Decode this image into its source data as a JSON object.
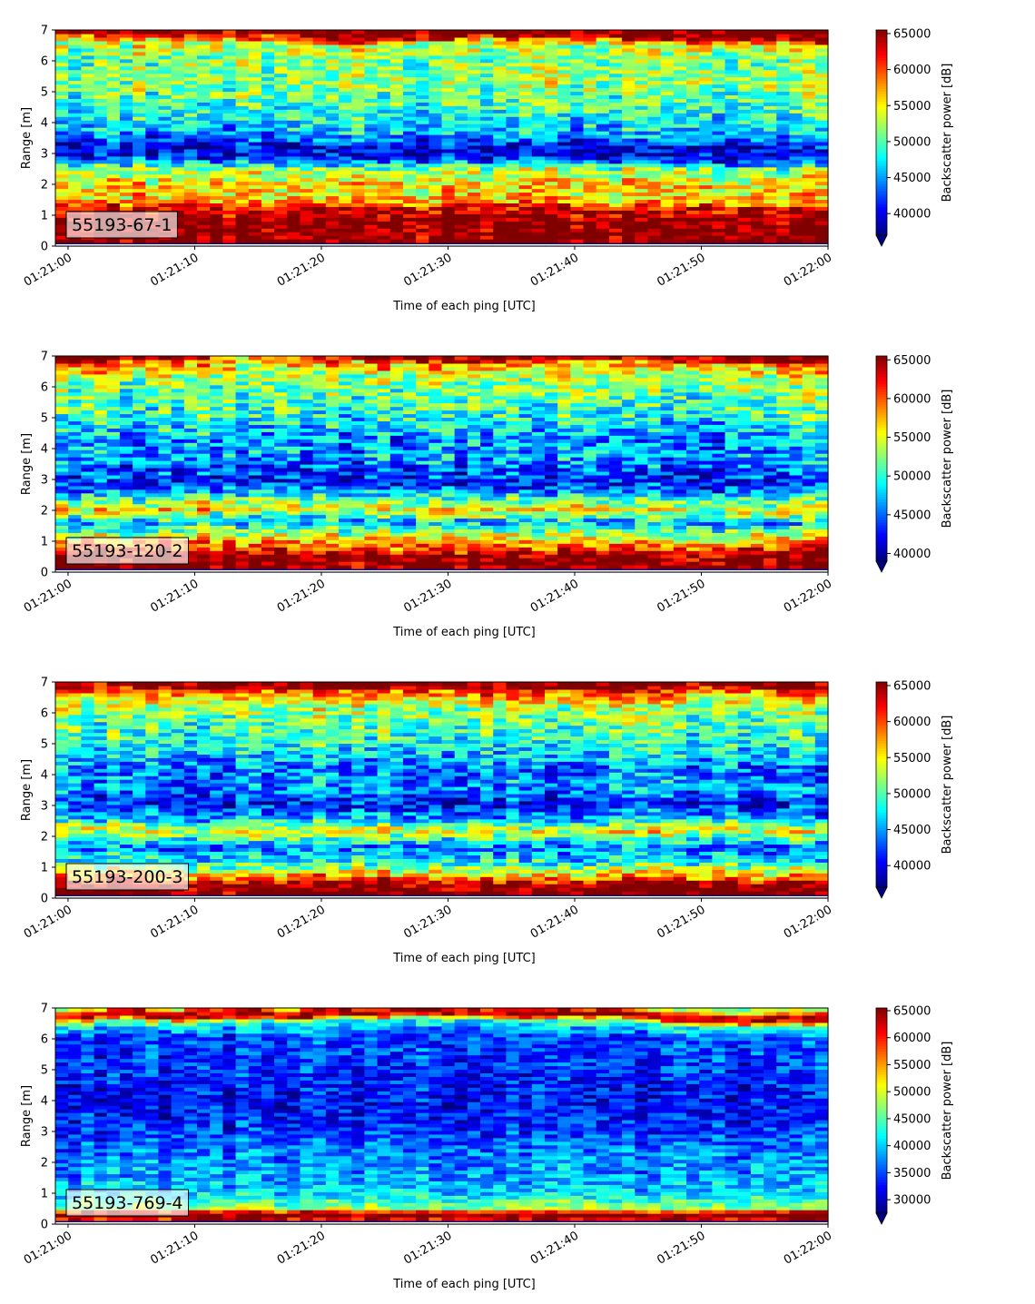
{
  "chart_data": [
    {
      "type": "heatmap",
      "label": "55193-67-1",
      "xlabel": "Time of each ping [UTC]",
      "ylabel": "Range [m]",
      "x_range": [
        "01:20:59",
        "01:22:00"
      ],
      "x_ticks": [
        "01:21:00",
        "01:21:10",
        "01:21:20",
        "01:21:30",
        "01:21:40",
        "01:21:50",
        "01:22:00"
      ],
      "ylim": [
        0,
        7
      ],
      "y_ticks": [
        "0",
        "1",
        "2",
        "3",
        "4",
        "5",
        "6",
        "7"
      ],
      "colorbar": {
        "label": "Backscatter power [dB]",
        "colormap": "jet",
        "min": 37000,
        "max": 65500,
        "extend": "min",
        "ticks": [
          "40000",
          "45000",
          "50000",
          "55000",
          "60000",
          "65000"
        ]
      },
      "profile": [
        {
          "range": 0.15,
          "value": 66000
        },
        {
          "range": 0.8,
          "value": 66000
        },
        {
          "range": 1.25,
          "value": 62000
        },
        {
          "range": 1.5,
          "value": 56000
        },
        {
          "range": 2.0,
          "value": 55500
        },
        {
          "range": 2.5,
          "value": 52000
        },
        {
          "range": 2.85,
          "value": 41000
        },
        {
          "range": 3.2,
          "value": 39500
        },
        {
          "range": 3.7,
          "value": 46000
        },
        {
          "range": 4.2,
          "value": 48000
        },
        {
          "range": 4.7,
          "value": 50000
        },
        {
          "range": 5.3,
          "value": 52000
        },
        {
          "range": 6.0,
          "value": 51000
        },
        {
          "range": 6.6,
          "value": 54000
        },
        {
          "range": 6.85,
          "value": 66000
        },
        {
          "range": 7.0,
          "value": 66000
        }
      ]
    },
    {
      "type": "heatmap",
      "label": "55193-120-2",
      "xlabel": "Time of each ping [UTC]",
      "ylabel": "Range [m]",
      "x_range": [
        "01:20:59",
        "01:22:00"
      ],
      "x_ticks": [
        "01:21:00",
        "01:21:10",
        "01:21:20",
        "01:21:30",
        "01:21:40",
        "01:21:50",
        "01:22:00"
      ],
      "ylim": [
        0,
        7
      ],
      "y_ticks": [
        "0",
        "1",
        "2",
        "3",
        "4",
        "5",
        "6",
        "7"
      ],
      "colorbar": {
        "label": "Backscatter power [dB]",
        "colormap": "jet",
        "min": 39000,
        "max": 65500,
        "extend": "min",
        "ticks": [
          "40000",
          "45000",
          "50000",
          "55000",
          "60000",
          "65000"
        ]
      },
      "profile": [
        {
          "range": 0.15,
          "value": 66000
        },
        {
          "range": 0.5,
          "value": 66000
        },
        {
          "range": 0.8,
          "value": 60000
        },
        {
          "range": 1.2,
          "value": 54000
        },
        {
          "range": 1.6,
          "value": 47000
        },
        {
          "range": 2.0,
          "value": 56000
        },
        {
          "range": 2.4,
          "value": 50000
        },
        {
          "range": 2.8,
          "value": 43000
        },
        {
          "range": 3.2,
          "value": 44000
        },
        {
          "range": 3.7,
          "value": 47000
        },
        {
          "range": 4.2,
          "value": 46000
        },
        {
          "range": 4.8,
          "value": 49000
        },
        {
          "range": 5.5,
          "value": 51000
        },
        {
          "range": 6.2,
          "value": 53000
        },
        {
          "range": 6.7,
          "value": 59000
        },
        {
          "range": 6.85,
          "value": 66000
        },
        {
          "range": 7.0,
          "value": 66000
        }
      ]
    },
    {
      "type": "heatmap",
      "label": "55193-200-3",
      "xlabel": "Time of each ping [UTC]",
      "ylabel": "Range [m]",
      "x_range": [
        "01:20:59",
        "01:22:00"
      ],
      "x_ticks": [
        "01:21:00",
        "01:21:10",
        "01:21:20",
        "01:21:30",
        "01:21:40",
        "01:21:50",
        "01:22:00"
      ],
      "ylim": [
        0,
        7
      ],
      "y_ticks": [
        "0",
        "1",
        "2",
        "3",
        "4",
        "5",
        "6",
        "7"
      ],
      "colorbar": {
        "label": "Backscatter power [dB]",
        "colormap": "jet",
        "min": 37000,
        "max": 65500,
        "extend": "min",
        "ticks": [
          "40000",
          "45000",
          "50000",
          "55000",
          "60000",
          "65000"
        ]
      },
      "profile": [
        {
          "range": 0.15,
          "value": 66000
        },
        {
          "range": 0.4,
          "value": 66000
        },
        {
          "range": 0.75,
          "value": 57000
        },
        {
          "range": 1.2,
          "value": 48000
        },
        {
          "range": 1.7,
          "value": 44000
        },
        {
          "range": 2.2,
          "value": 55000
        },
        {
          "range": 2.6,
          "value": 46000
        },
        {
          "range": 3.1,
          "value": 41000
        },
        {
          "range": 3.6,
          "value": 45000
        },
        {
          "range": 4.2,
          "value": 44000
        },
        {
          "range": 4.9,
          "value": 48000
        },
        {
          "range": 5.6,
          "value": 50000
        },
        {
          "range": 6.3,
          "value": 53000
        },
        {
          "range": 6.75,
          "value": 60000
        },
        {
          "range": 6.9,
          "value": 66000
        },
        {
          "range": 7.0,
          "value": 66000
        }
      ]
    },
    {
      "type": "heatmap",
      "label": "55193-769-4",
      "xlabel": "Time of each ping [UTC]",
      "ylabel": "Range [m]",
      "x_range": [
        "01:20:59",
        "01:22:00"
      ],
      "x_ticks": [
        "01:21:00",
        "01:21:10",
        "01:21:20",
        "01:21:30",
        "01:21:40",
        "01:21:50",
        "01:22:00"
      ],
      "ylim": [
        0,
        7
      ],
      "y_ticks": [
        "0",
        "1",
        "2",
        "3",
        "4",
        "5",
        "6",
        "7"
      ],
      "colorbar": {
        "label": "Backscatter power [dB]",
        "colormap": "jet",
        "min": 27500,
        "max": 65500,
        "extend": "min",
        "ticks": [
          "30000",
          "35000",
          "40000",
          "45000",
          "50000",
          "55000",
          "60000",
          "65000"
        ]
      },
      "profile": [
        {
          "range": 0.1,
          "value": 50000
        },
        {
          "range": 0.2,
          "value": 66000
        },
        {
          "range": 0.35,
          "value": 66000
        },
        {
          "range": 0.5,
          "value": 48000
        },
        {
          "range": 1.0,
          "value": 40000
        },
        {
          "range": 1.6,
          "value": 38000
        },
        {
          "range": 2.2,
          "value": 37000
        },
        {
          "range": 3.0,
          "value": 34000
        },
        {
          "range": 3.8,
          "value": 32000
        },
        {
          "range": 4.6,
          "value": 33000
        },
        {
          "range": 5.4,
          "value": 34000
        },
        {
          "range": 6.1,
          "value": 35000
        },
        {
          "range": 6.5,
          "value": 44000
        },
        {
          "range": 6.7,
          "value": 66000
        },
        {
          "range": 6.85,
          "value": 60000
        },
        {
          "range": 7.0,
          "value": 47000
        }
      ]
    }
  ]
}
